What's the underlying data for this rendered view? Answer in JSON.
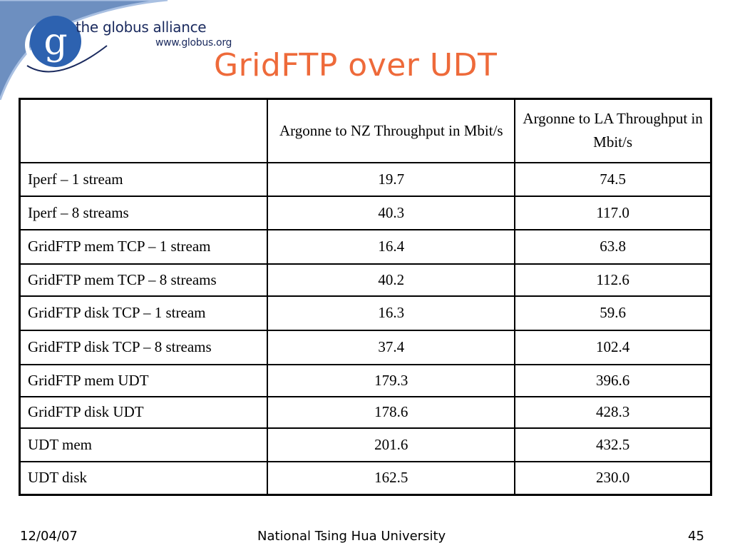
{
  "logo": {
    "name": "the globus alliance",
    "url": "www.globus.org",
    "mark": "g"
  },
  "slide": {
    "title": "GridFTP over UDT"
  },
  "table": {
    "header": [
      "",
      "Argonne to NZ Throughput in Mbit/s",
      "Argonne to LA Throughput in Mbit/s"
    ],
    "rows": [
      {
        "label": "Iperf – 1 stream",
        "nz": "19.7",
        "la": "74.5"
      },
      {
        "label": "Iperf – 8 streams",
        "nz": "40.3",
        "la": "117.0"
      },
      {
        "label": "GridFTP mem TCP – 1 stream",
        "nz": "16.4",
        "la": "63.8"
      },
      {
        "label": "GridFTP mem TCP – 8 streams",
        "nz": "40.2",
        "la": "112.6"
      },
      {
        "label": "GridFTP disk TCP – 1 stream",
        "nz": "16.3",
        "la": "59.6"
      },
      {
        "label": "GridFTP disk TCP – 8 streams",
        "nz": "37.4",
        "la": "102.4"
      },
      {
        "label": "GridFTP mem UDT",
        "nz": "179.3",
        "la": "396.6"
      },
      {
        "label": "GridFTP disk UDT",
        "nz": "178.6",
        "la": "428.3"
      },
      {
        "label": "UDT mem",
        "nz": "201.6",
        "la": "432.5"
      },
      {
        "label": "UDT disk",
        "nz": "162.5",
        "la": "230.0"
      }
    ]
  },
  "footer": {
    "date": "12/04/07",
    "organization": "National Tsing Hua University",
    "page": "45"
  },
  "colors": {
    "title": "#ee6a3a",
    "swoosh": "#6d8fc0",
    "logo_circle": "#2d62b0",
    "logo_text": "#1a2a5e"
  }
}
